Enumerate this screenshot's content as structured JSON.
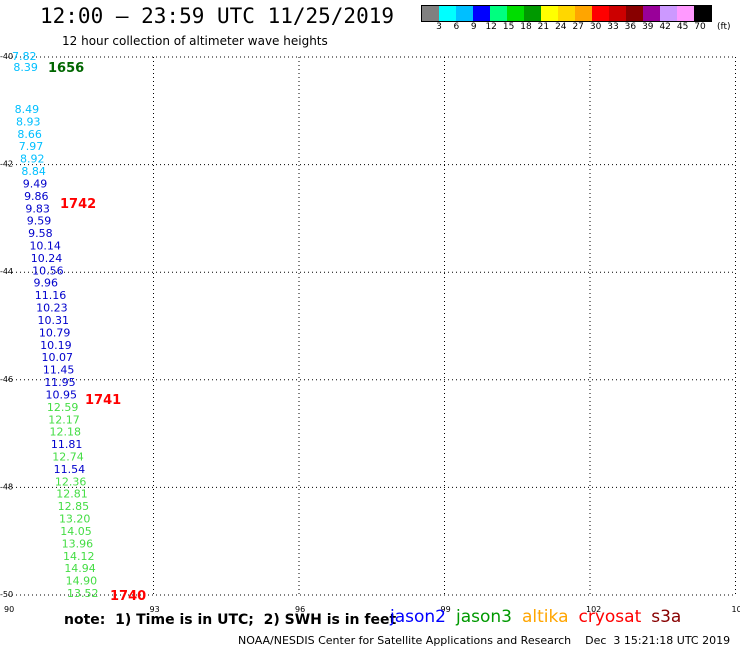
{
  "header": {
    "title": "12:00 – 23:59 UTC 11/25/2019",
    "subtitle": "12 hour collection of altimeter wave heights"
  },
  "legend": {
    "colors": [
      "#808080",
      "#00ffff",
      "#00bfff",
      "#0000ff",
      "#00ff7f",
      "#00dd00",
      "#009900",
      "#ffff00",
      "#ffd700",
      "#ffa500",
      "#ff0000",
      "#cc0000",
      "#880000",
      "#990099",
      "#cc99ff",
      "#ff99ff",
      "#000000"
    ],
    "labels": [
      "3",
      "6",
      "9",
      "12",
      "15",
      "18",
      "21",
      "24",
      "27",
      "30",
      "33",
      "36",
      "39",
      "42",
      "45",
      "70"
    ],
    "units": "(ft)"
  },
  "axes": {
    "lon_labels": [
      "90",
      "93",
      "96",
      "99",
      "102",
      "105"
    ],
    "lat_labels": [
      "-40",
      "-42",
      "-44",
      "-46",
      "-48",
      "-50"
    ]
  },
  "observations": [
    {
      "v": "7.82",
      "c": "#00bfff"
    },
    {
      "v": "8.39",
      "c": "#00bfff"
    },
    {
      "v": "8.49",
      "c": "#00bfff"
    },
    {
      "v": "8.93",
      "c": "#00bfff"
    },
    {
      "v": "8.66",
      "c": "#00bfff"
    },
    {
      "v": "7.97",
      "c": "#00bfff"
    },
    {
      "v": "8.92",
      "c": "#00bfff"
    },
    {
      "v": "8.84",
      "c": "#00bfff"
    },
    {
      "v": "9.49",
      "c": "#0000cc"
    },
    {
      "v": "9.86",
      "c": "#0000cc"
    },
    {
      "v": "9.83",
      "c": "#0000cc"
    },
    {
      "v": "9.59",
      "c": "#0000cc"
    },
    {
      "v": "9.58",
      "c": "#0000cc"
    },
    {
      "v": "10.14",
      "c": "#0000cc"
    },
    {
      "v": "10.24",
      "c": "#0000cc"
    },
    {
      "v": "10.56",
      "c": "#0000cc"
    },
    {
      "v": "9.96",
      "c": "#0000cc"
    },
    {
      "v": "11.16",
      "c": "#0000cc"
    },
    {
      "v": "10.23",
      "c": "#0000cc"
    },
    {
      "v": "10.31",
      "c": "#0000cc"
    },
    {
      "v": "10.79",
      "c": "#0000cc"
    },
    {
      "v": "10.19",
      "c": "#0000cc"
    },
    {
      "v": "10.07",
      "c": "#0000cc"
    },
    {
      "v": "11.45",
      "c": "#0000cc"
    },
    {
      "v": "11.95",
      "c": "#0000cc"
    },
    {
      "v": "10.95",
      "c": "#0000cc"
    },
    {
      "v": "12.59",
      "c": "#44dd44"
    },
    {
      "v": "12.17",
      "c": "#44dd44"
    },
    {
      "v": "12.18",
      "c": "#44dd44"
    },
    {
      "v": "11.81",
      "c": "#0000cc"
    },
    {
      "v": "12.74",
      "c": "#44dd44"
    },
    {
      "v": "11.54",
      "c": "#0000cc"
    },
    {
      "v": "12.36",
      "c": "#44dd44"
    },
    {
      "v": "12.81",
      "c": "#44dd44"
    },
    {
      "v": "12.85",
      "c": "#44dd44"
    },
    {
      "v": "13.20",
      "c": "#44dd44"
    },
    {
      "v": "14.05",
      "c": "#44dd44"
    },
    {
      "v": "13.96",
      "c": "#44dd44"
    },
    {
      "v": "14.12",
      "c": "#44dd44"
    },
    {
      "v": "14.94",
      "c": "#44dd44"
    },
    {
      "v": "14.90",
      "c": "#44dd44"
    },
    {
      "v": "13.52",
      "c": "#44dd44"
    }
  ],
  "pass_times": [
    {
      "t": "1656",
      "c": "#006600"
    },
    {
      "t": "1742",
      "c": "#ff0000"
    },
    {
      "t": "1741",
      "c": "#ff0000"
    },
    {
      "t": "1740",
      "c": "#ff0000"
    }
  ],
  "footer": {
    "note": "note:  1) Time is in UTC;  2) SWH is in feet",
    "missions": [
      {
        "name": "jason2",
        "color": "#0000ff"
      },
      {
        "name": "jason3",
        "color": "#009900"
      },
      {
        "name": "altika",
        "color": "#ffa500"
      },
      {
        "name": "cryosat",
        "color": "#ff0000"
      },
      {
        "name": "s3a",
        "color": "#880000"
      }
    ],
    "credit": "NOAA/NESDIS Center for Satellite Applications and Research    Dec  3 15:21:18 UTC 2019"
  }
}
